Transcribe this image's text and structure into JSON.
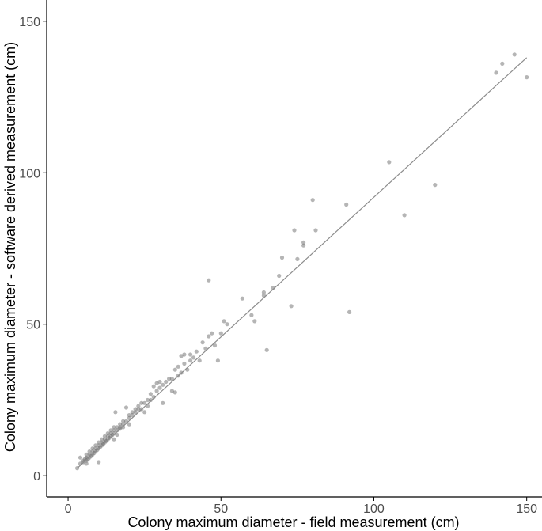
{
  "chart_data": {
    "type": "scatter",
    "xlabel": "Colony maximum diameter - field measurement (cm)",
    "ylabel": "Colony maximum diameter - software derived measurement (cm)",
    "xlim": [
      -7,
      155
    ],
    "ylim": [
      -7,
      157
    ],
    "x_ticks": [
      0,
      50,
      100,
      150
    ],
    "y_ticks": [
      0,
      50,
      100,
      150
    ],
    "grid": false,
    "colors": {
      "points": "#6b6b6b",
      "fit_line": "#8c8c8c",
      "axis": "#000000"
    },
    "fit_line": {
      "x": [
        3,
        150
      ],
      "y": [
        2.5,
        138
      ]
    },
    "points": [
      [
        3,
        2.5
      ],
      [
        4,
        4
      ],
      [
        4,
        6
      ],
      [
        5,
        4.5
      ],
      [
        5,
        5
      ],
      [
        5.5,
        5.5
      ],
      [
        6,
        4
      ],
      [
        6,
        5
      ],
      [
        6,
        6
      ],
      [
        6,
        7
      ],
      [
        6.5,
        5.5
      ],
      [
        7,
        6
      ],
      [
        7,
        7
      ],
      [
        7,
        8
      ],
      [
        7.5,
        6.5
      ],
      [
        8,
        7
      ],
      [
        8,
        8
      ],
      [
        8,
        9
      ],
      [
        8.5,
        7.5
      ],
      [
        9,
        8
      ],
      [
        9,
        9
      ],
      [
        9,
        10
      ],
      [
        9.5,
        8.5
      ],
      [
        10,
        4.5
      ],
      [
        10,
        9
      ],
      [
        10,
        10
      ],
      [
        10,
        11
      ],
      [
        10.5,
        9.5
      ],
      [
        11,
        10
      ],
      [
        11,
        11
      ],
      [
        11,
        12
      ],
      [
        11.5,
        10.5
      ],
      [
        12,
        11
      ],
      [
        12,
        12
      ],
      [
        12,
        13
      ],
      [
        12.5,
        11.5
      ],
      [
        13,
        12
      ],
      [
        13,
        13
      ],
      [
        13,
        14
      ],
      [
        13.5,
        12.5
      ],
      [
        14,
        13
      ],
      [
        14,
        14
      ],
      [
        14,
        15
      ],
      [
        14.5,
        13.5
      ],
      [
        15,
        14
      ],
      [
        15,
        15
      ],
      [
        15,
        16
      ],
      [
        15,
        12
      ],
      [
        15.5,
        21
      ],
      [
        16,
        15
      ],
      [
        16,
        16
      ],
      [
        16,
        13.5
      ],
      [
        17,
        16
      ],
      [
        17,
        17
      ],
      [
        17,
        15.5
      ],
      [
        18,
        17
      ],
      [
        18,
        18
      ],
      [
        18,
        16
      ],
      [
        19,
        18
      ],
      [
        19,
        22.5
      ],
      [
        20,
        19
      ],
      [
        20,
        20
      ],
      [
        20,
        17
      ],
      [
        21,
        20
      ],
      [
        21,
        21
      ],
      [
        22,
        21
      ],
      [
        22,
        22
      ],
      [
        23,
        22
      ],
      [
        23,
        23
      ],
      [
        24,
        24
      ],
      [
        24,
        22
      ],
      [
        25,
        24
      ],
      [
        25,
        21
      ],
      [
        26,
        25
      ],
      [
        26,
        23
      ],
      [
        27,
        27
      ],
      [
        27,
        25
      ],
      [
        28,
        26
      ],
      [
        28,
        29.5
      ],
      [
        29,
        28
      ],
      [
        29,
        30.5
      ],
      [
        30,
        31
      ],
      [
        30,
        29
      ],
      [
        31,
        24
      ],
      [
        31,
        30
      ],
      [
        32,
        31
      ],
      [
        33,
        32
      ],
      [
        34,
        32
      ],
      [
        34,
        28
      ],
      [
        35,
        35
      ],
      [
        35,
        27.5
      ],
      [
        36,
        36
      ],
      [
        36,
        33
      ],
      [
        37,
        34
      ],
      [
        37,
        39.5
      ],
      [
        38,
        40
      ],
      [
        38,
        37
      ],
      [
        39,
        35
      ],
      [
        40,
        38
      ],
      [
        40,
        40
      ],
      [
        41,
        39
      ],
      [
        42,
        41
      ],
      [
        43,
        38
      ],
      [
        44,
        44
      ],
      [
        45,
        42
      ],
      [
        46,
        64.5
      ],
      [
        46,
        46
      ],
      [
        47,
        47
      ],
      [
        48,
        43
      ],
      [
        49,
        38
      ],
      [
        50,
        47
      ],
      [
        51,
        51
      ],
      [
        52,
        50
      ],
      [
        57,
        58.5
      ],
      [
        60,
        53
      ],
      [
        61,
        51
      ],
      [
        64,
        60.5
      ],
      [
        64,
        59.5
      ],
      [
        65,
        41.5
      ],
      [
        67,
        62
      ],
      [
        69,
        66
      ],
      [
        70,
        72
      ],
      [
        73,
        56
      ],
      [
        74,
        81
      ],
      [
        75,
        71.5
      ],
      [
        77,
        76
      ],
      [
        77,
        77
      ],
      [
        80,
        91
      ],
      [
        81,
        81
      ],
      [
        91,
        89.5
      ],
      [
        92,
        54
      ],
      [
        105,
        103.5
      ],
      [
        110,
        86
      ],
      [
        120,
        96
      ],
      [
        140,
        133
      ],
      [
        142,
        136
      ],
      [
        146,
        139
      ],
      [
        150,
        131.5
      ]
    ]
  }
}
